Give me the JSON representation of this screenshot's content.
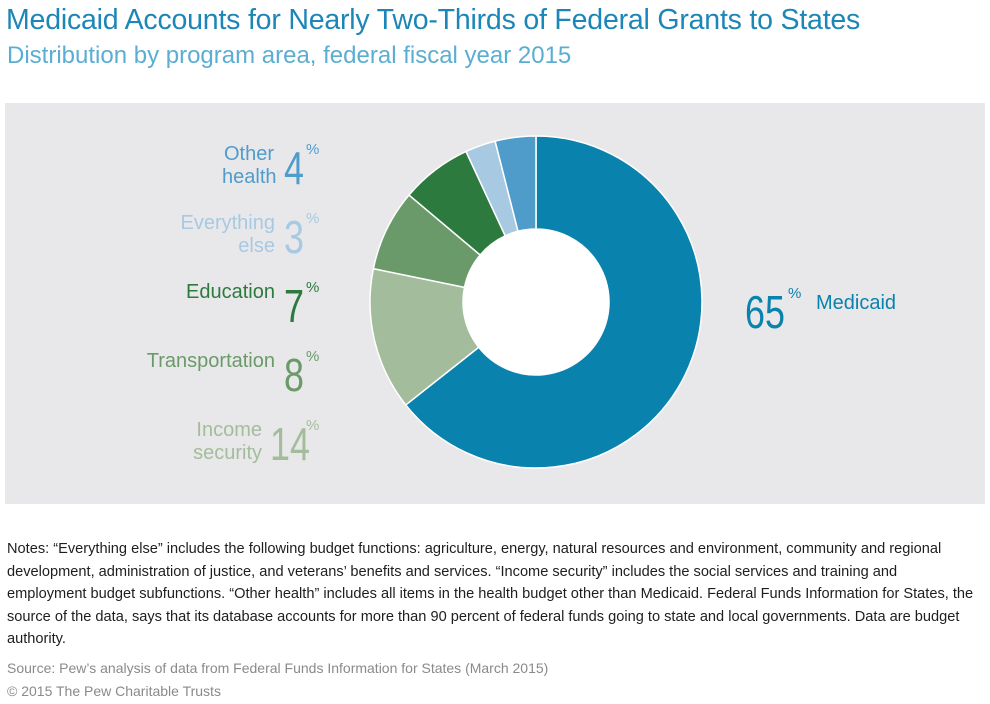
{
  "title": "Medicaid Accounts for Nearly Two-Thirds of Federal Grants to States",
  "subtitle": "Distribution by program area, federal fiscal year 2015",
  "chart_data": {
    "type": "pie",
    "donut": true,
    "categories": [
      "Medicaid",
      "Income security",
      "Transportation",
      "Education",
      "Everything else",
      "Other health"
    ],
    "values": [
      65,
      14,
      8,
      7,
      3,
      4
    ],
    "colors": [
      "#0a82ae",
      "#a3bd9c",
      "#6b9a6a",
      "#2d7a3f",
      "#a7c9e2",
      "#4f9ccb"
    ],
    "label_colors": [
      "#0a82ae",
      "#a3bd9c",
      "#6b9a6a",
      "#2d7a3f",
      "#a7c9e2",
      "#4f9ccb"
    ],
    "labels": {
      "medicaid": {
        "name": "Medicaid",
        "value": "65",
        "sign": "%"
      },
      "income": {
        "name_line1": "Income",
        "name_line2": "security",
        "value": "14",
        "sign": "%"
      },
      "transportation": {
        "name": "Transportation",
        "value": "8",
        "sign": "%"
      },
      "education": {
        "name": "Education",
        "value": "7",
        "sign": "%"
      },
      "everything": {
        "name_line1": "Everything",
        "name_line2": "else",
        "value": "3",
        "sign": "%"
      },
      "other_health": {
        "name_line1": "Other",
        "name_line2": "health",
        "value": "4",
        "sign": "%"
      }
    },
    "background": "#e8e8ea"
  },
  "notes": "Notes: “Everything else” includes the following budget functions: agriculture, energy, natural resources and environment, community and regional development, administration of justice, and veterans’ benefits and services. “Income security” includes the social services and training and employment budget subfunctions. “Other health” includes all items in the health budget other than Medicaid. Federal Funds Information for States, the source of the data, says that its database accounts for more than 90 percent of federal funds going to state and local governments. Data are budget authority.",
  "source": "Source: Pew’s analysis of data from Federal Funds Information for States (March 2015)",
  "copyright": "© 2015 The Pew Charitable Trusts"
}
